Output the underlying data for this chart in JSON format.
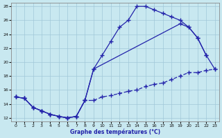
{
  "bg_color": "#c8e8f0",
  "grid_color": "#a0c8d8",
  "line_color": "#2222aa",
  "xlabel": "Graphe des températures (°C)",
  "xmin": -0.5,
  "xmax": 23.5,
  "ymin": 11.5,
  "ymax": 28.5,
  "yticks": [
    12,
    14,
    16,
    18,
    20,
    22,
    24,
    26,
    28
  ],
  "xticks": [
    0,
    1,
    2,
    3,
    4,
    5,
    6,
    7,
    8,
    9,
    10,
    11,
    12,
    13,
    14,
    15,
    16,
    17,
    18,
    19,
    20,
    21,
    22,
    23
  ],
  "curve_main_x": [
    0,
    1,
    2,
    3,
    4,
    5,
    6,
    7,
    8,
    9,
    10,
    11,
    12,
    13,
    14,
    15,
    16,
    17,
    18,
    19,
    20,
    21,
    22
  ],
  "curve_main_y": [
    15.0,
    14.8,
    13.5,
    13.0,
    12.5,
    12.2,
    12.0,
    12.2,
    14.5,
    19.0,
    21.0,
    23.0,
    25.0,
    26.0,
    28.0,
    28.0,
    27.5,
    27.0,
    26.5,
    26.0,
    25.0,
    23.5,
    21.0
  ],
  "curve_low_x": [
    0,
    1,
    2,
    3,
    4,
    5,
    6,
    7,
    8,
    9,
    10,
    11,
    12,
    13,
    14,
    15,
    16,
    17,
    18,
    19,
    20,
    21,
    22,
    23
  ],
  "curve_low_y": [
    15.0,
    14.8,
    13.5,
    13.0,
    12.5,
    12.2,
    12.0,
    12.2,
    14.5,
    14.5,
    15.0,
    15.2,
    15.5,
    15.8,
    16.0,
    16.5,
    16.8,
    17.0,
    17.5,
    18.0,
    18.5,
    18.5,
    18.8,
    19.0
  ],
  "curve_mid_x": [
    0,
    1,
    2,
    3,
    4,
    5,
    6,
    7,
    8,
    9,
    19,
    20,
    21,
    22,
    23
  ],
  "curve_mid_y": [
    15.0,
    14.8,
    13.5,
    13.0,
    12.5,
    12.2,
    12.0,
    12.2,
    14.5,
    19.0,
    25.5,
    25.0,
    23.5,
    21.0,
    19.0
  ]
}
